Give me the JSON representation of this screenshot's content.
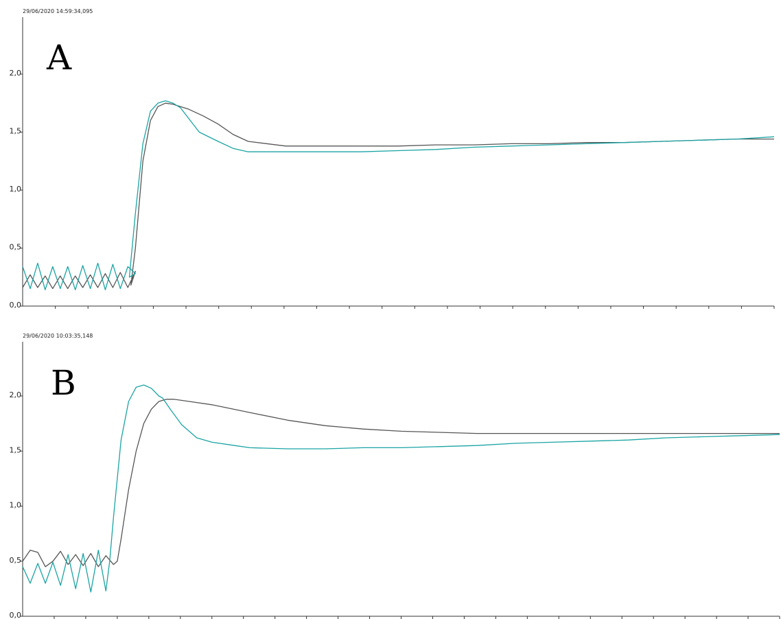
{
  "chart_data": [
    {
      "type": "line",
      "panel_label": "A",
      "timestamp": "29/06/2020 14:59:34,095",
      "ylim": [
        0,
        2.5
      ],
      "xlim": [
        0,
        100
      ],
      "y_ticks": [
        "0,0",
        "0,5",
        "1,0",
        "1,5",
        "2,0"
      ],
      "y_tick_values": [
        0,
        0.5,
        1.0,
        1.5,
        2.0
      ],
      "x_tick_count": 23,
      "grid": false,
      "series_colors": [
        "#555555",
        "#1aa3a3"
      ],
      "series": [
        {
          "color": "#555555",
          "x": [
            0,
            1,
            2,
            3,
            4,
            5,
            6,
            7,
            8,
            9,
            10,
            11,
            12,
            13,
            14,
            15,
            14.4,
            15,
            16,
            17,
            18,
            19,
            20,
            22,
            24,
            26,
            28,
            30,
            35,
            40,
            45,
            50,
            55,
            60,
            65,
            70,
            75,
            80,
            85,
            90,
            95,
            100
          ],
          "y": [
            0.16,
            0.27,
            0.16,
            0.26,
            0.15,
            0.26,
            0.15,
            0.26,
            0.16,
            0.27,
            0.16,
            0.28,
            0.16,
            0.29,
            0.16,
            0.3,
            0.18,
            0.5,
            1.25,
            1.6,
            1.72,
            1.75,
            1.74,
            1.7,
            1.64,
            1.57,
            1.48,
            1.42,
            1.38,
            1.38,
            1.38,
            1.38,
            1.39,
            1.39,
            1.4,
            1.4,
            1.41,
            1.41,
            1.42,
            1.43,
            1.44,
            1.44
          ]
        },
        {
          "color": "#1aa3a3",
          "x": [
            0,
            1,
            2,
            3,
            4,
            5,
            6,
            7,
            8,
            9,
            10,
            11,
            12,
            13,
            14,
            15,
            14.2,
            15,
            16,
            17,
            18,
            19,
            20,
            21,
            23.5,
            26,
            28,
            30,
            35,
            40,
            45,
            50,
            55,
            60,
            65,
            70,
            75,
            80,
            85,
            90,
            95,
            100
          ],
          "y": [
            0.34,
            0.15,
            0.37,
            0.14,
            0.34,
            0.15,
            0.34,
            0.14,
            0.35,
            0.15,
            0.37,
            0.14,
            0.36,
            0.15,
            0.34,
            0.28,
            0.25,
            0.8,
            1.4,
            1.68,
            1.75,
            1.77,
            1.75,
            1.71,
            1.5,
            1.42,
            1.36,
            1.33,
            1.33,
            1.33,
            1.33,
            1.34,
            1.35,
            1.37,
            1.38,
            1.39,
            1.4,
            1.41,
            1.42,
            1.43,
            1.44,
            1.46
          ]
        }
      ]
    },
    {
      "type": "line",
      "panel_label": "B",
      "timestamp": "29/06/2020 10:03:35,148",
      "ylim": [
        0,
        2.5
      ],
      "xlim": [
        0,
        100
      ],
      "y_ticks": [
        "0,0",
        "0,5",
        "1,0",
        "1,5",
        "2,0"
      ],
      "y_tick_values": [
        0,
        0.5,
        1.0,
        1.5,
        2.0
      ],
      "x_tick_count": 24,
      "grid": false,
      "series_colors": [
        "#555555",
        "#1aa3a3"
      ],
      "series": [
        {
          "color": "#555555",
          "x": [
            0,
            1,
            2,
            3,
            4,
            5,
            6,
            7,
            8,
            9,
            10,
            11,
            12,
            12.5,
            13,
            14,
            15,
            16,
            17,
            18,
            19,
            20,
            22,
            25,
            30,
            35,
            40,
            45,
            50,
            55,
            60,
            65,
            70,
            75,
            80,
            85,
            90,
            95,
            100
          ],
          "y": [
            0.5,
            0.6,
            0.58,
            0.45,
            0.5,
            0.59,
            0.47,
            0.56,
            0.46,
            0.57,
            0.45,
            0.55,
            0.47,
            0.5,
            0.7,
            1.15,
            1.5,
            1.75,
            1.88,
            1.95,
            1.97,
            1.97,
            1.95,
            1.92,
            1.85,
            1.78,
            1.73,
            1.7,
            1.68,
            1.67,
            1.66,
            1.66,
            1.66,
            1.66,
            1.66,
            1.66,
            1.66,
            1.66,
            1.66
          ]
        },
        {
          "color": "#1aa3a3",
          "x": [
            0,
            1,
            2,
            3,
            4,
            5,
            6,
            7,
            8,
            9,
            10,
            11,
            11.5,
            12,
            13,
            14,
            15,
            16,
            17,
            18,
            18.5,
            19.5,
            21,
            23,
            25,
            28,
            30,
            35,
            40,
            45,
            50,
            55,
            60,
            65,
            70,
            75,
            80,
            85,
            90,
            95,
            100
          ],
          "y": [
            0.45,
            0.3,
            0.48,
            0.3,
            0.49,
            0.28,
            0.56,
            0.25,
            0.57,
            0.22,
            0.6,
            0.23,
            0.5,
            0.9,
            1.6,
            1.95,
            2.08,
            2.1,
            2.07,
            2.0,
            1.98,
            1.88,
            1.74,
            1.62,
            1.58,
            1.55,
            1.53,
            1.52,
            1.52,
            1.53,
            1.53,
            1.54,
            1.55,
            1.57,
            1.58,
            1.59,
            1.6,
            1.62,
            1.63,
            1.64,
            1.65
          ]
        }
      ]
    }
  ]
}
